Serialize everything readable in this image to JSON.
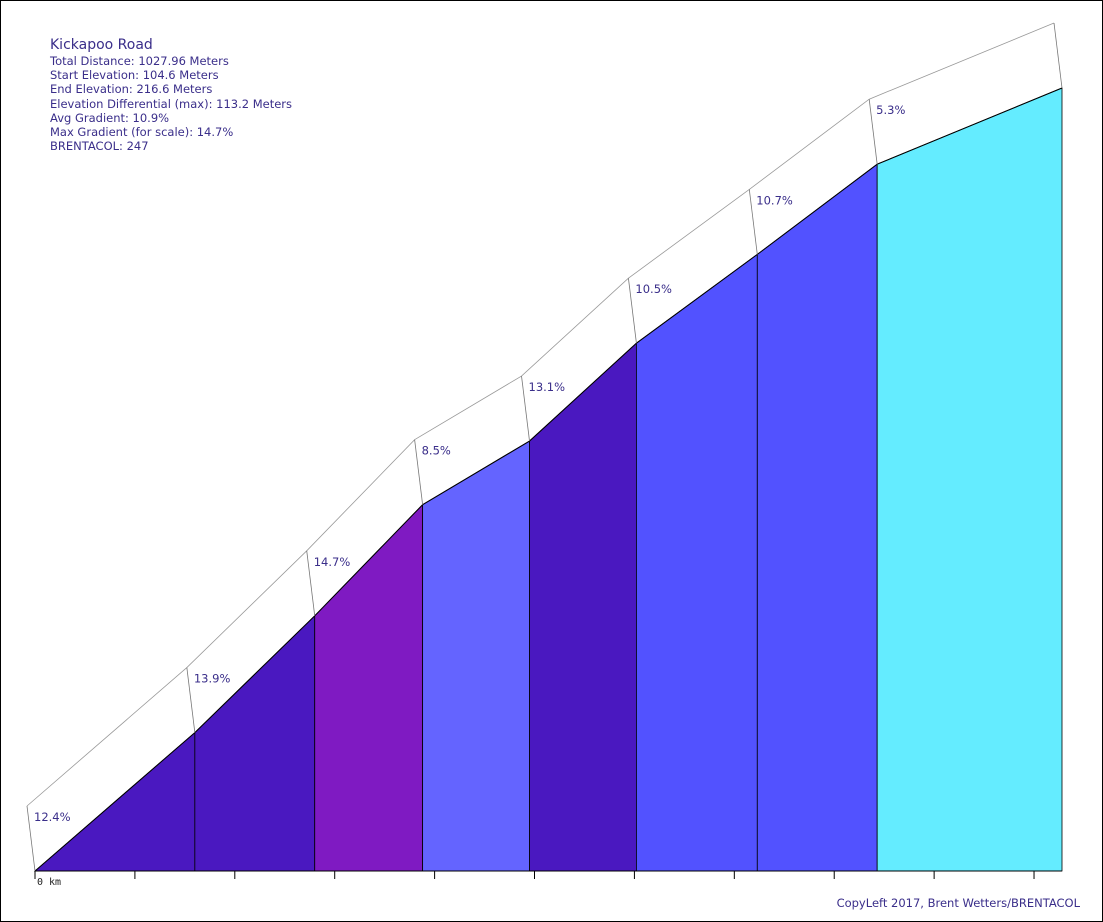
{
  "info": {
    "title": "Kickapoo Road",
    "total_distance": "Total Distance: 1027.96 Meters",
    "start_elevation": "Start Elevation: 104.6 Meters",
    "end_elevation": "End Elevation: 216.6 Meters",
    "elevation_differential": "Elevation Differential (max): 113.2 Meters",
    "avg_gradient": "Avg Gradient: 10.9%",
    "max_gradient": "Max Gradient (for scale): 14.7%",
    "brentacol": "BRENTACOL: 247"
  },
  "copyleft": "CopyLeft 2017, Brent Wetters/BRENTACOL",
  "chart_data": {
    "type": "area",
    "title": "Kickapoo Road",
    "x_unit": "m",
    "y_unit": "m",
    "x_tick_label": "0 km",
    "x": [
      0,
      160,
      280,
      388,
      495,
      602,
      723,
      843,
      1028
    ],
    "elevation": [
      104.6,
      124.4,
      141.1,
      157.0,
      166.1,
      180.1,
      192.8,
      205.7,
      216.6
    ],
    "segments": [
      {
        "gradient_label": "12.4%",
        "gradient": 12.4,
        "color": "#4a18c0"
      },
      {
        "gradient_label": "13.9%",
        "gradient": 13.9,
        "color": "#4a18c0"
      },
      {
        "gradient_label": "14.7%",
        "gradient": 14.7,
        "color": "#7f1ac2"
      },
      {
        "gradient_label": "8.5%",
        "gradient": 8.5,
        "color": "#6464ff"
      },
      {
        "gradient_label": "13.1%",
        "gradient": 13.1,
        "color": "#4a18c0"
      },
      {
        "gradient_label": "10.5%",
        "gradient": 10.5,
        "color": "#5252ff"
      },
      {
        "gradient_label": "10.7%",
        "gradient": 10.7,
        "color": "#5252ff"
      },
      {
        "gradient_label": "5.3%",
        "gradient": 5.3,
        "color": "#64ecff"
      }
    ],
    "xlim": [
      0,
      1028
    ],
    "ylim": [
      104.6,
      216.6
    ]
  }
}
